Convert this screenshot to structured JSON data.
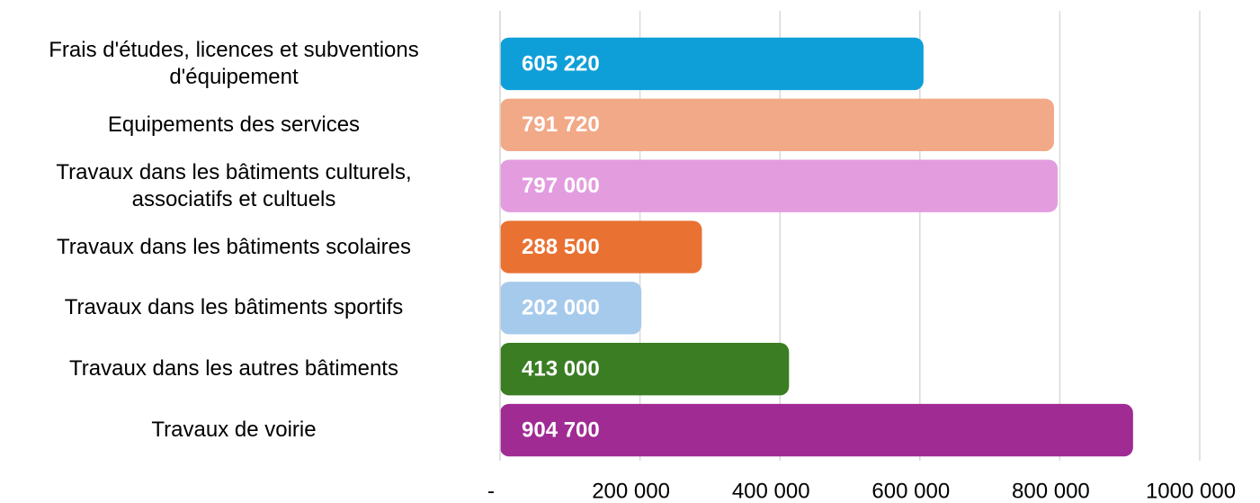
{
  "chart_data": {
    "type": "bar",
    "orientation": "horizontal",
    "categories": [
      "Frais d'études, licences et subventions\nd'équipement",
      "Equipements des services",
      "Travaux dans les bâtiments culturels,\nassociatifs et cultuels",
      "Travaux dans les bâtiments scolaires",
      "Travaux dans les bâtiments sportifs",
      "Travaux dans les autres bâtiments",
      "Travaux de voirie"
    ],
    "values": [
      605220,
      791720,
      797000,
      288500,
      202000,
      413000,
      904700
    ],
    "value_labels": [
      "605 220",
      "791 720",
      "797 000",
      "288 500",
      "202 000",
      "413 000",
      "904 700"
    ],
    "colors": [
      "#0f9fd8",
      "#f2a987",
      "#e39ddf",
      "#e97132",
      "#a6caec",
      "#3a7d22",
      "#a02b93"
    ],
    "xlim": [
      0,
      1000000
    ],
    "xticks": [
      {
        "value": 0,
        "label": "-"
      },
      {
        "value": 200000,
        "label": "200 000"
      },
      {
        "value": 400000,
        "label": "400 000"
      },
      {
        "value": 600000,
        "label": "600 000"
      },
      {
        "value": 800000,
        "label": "800 000"
      },
      {
        "value": 1000000,
        "label": "1000 000"
      }
    ],
    "grid": true
  }
}
